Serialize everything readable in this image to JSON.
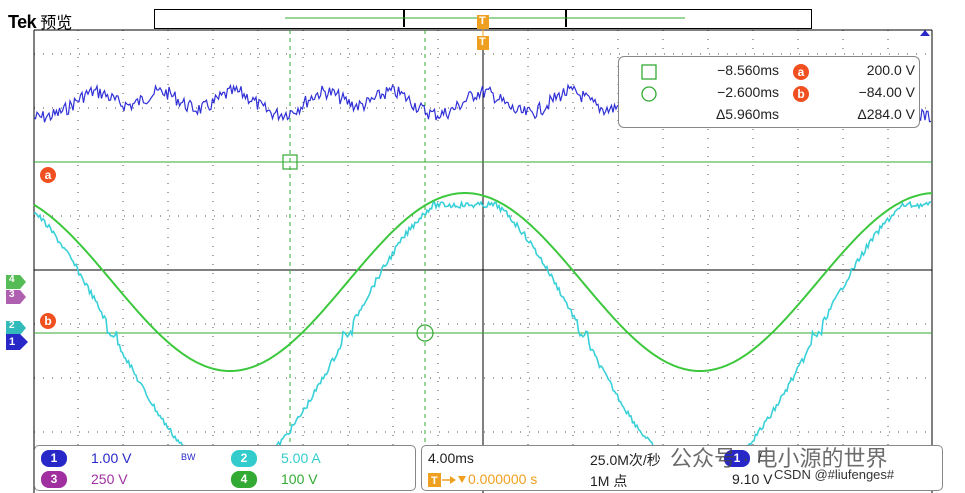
{
  "brand": {
    "logo": "Tek",
    "mode": "预览"
  },
  "cursor_readout": {
    "cursor1_time": "−8.560ms",
    "cursor2_time": "−2.600ms",
    "delta_time": "Δ5.960ms",
    "cursor_a_value": "200.0 V",
    "cursor_b_value": "−84.00 V",
    "delta_value": "Δ284.0 V",
    "cursor_a_label": "a",
    "cursor_b_label": "b"
  },
  "markers": {
    "trigger": "T",
    "ref_a": "a",
    "ref_b": "b",
    "ch4": "4",
    "ch3": "3",
    "ch2": "2",
    "ch1": "1"
  },
  "channels": [
    {
      "num": "1",
      "scale": "1.00 V",
      "color": "#2828c8"
    },
    {
      "num": "2",
      "scale": "5.00 A",
      "color": "#33cccc"
    },
    {
      "num": "3",
      "scale": "250 V",
      "color": "#a030a0"
    },
    {
      "num": "4",
      "scale": "100 V",
      "color": "#33aa33"
    }
  ],
  "bandwidth_icon_label": "BW",
  "timebase": {
    "scale": "4.00ms",
    "sample_rate": "25.0M次/秒",
    "trigger_position": "0.000000 s",
    "record_length": "1M 点",
    "trigger_channel": "1",
    "trigger_slope": "/",
    "trigger_level": "9.10 V"
  },
  "watermark": {
    "line1": "公众号 · 电小源的世界",
    "line2": "CSDN @#liufenges#"
  },
  "colors": {
    "grid": "#000000",
    "ch1_trace": "#1a1ad2",
    "ch2_trace": "#3ad0d8",
    "ch4_trace": "#3cc83c",
    "cursor": "#33aa33",
    "cursor_badge": "#f05020",
    "trigger_marker": "#f0a020"
  },
  "chart_data": {
    "type": "line",
    "series": [
      {
        "shape": "ripple",
        "peaks_ms": [
          -14.5,
          -7.2,
          -0.3,
          7.2,
          14.4
        ]
      },
      {
        "shape": "sine",
        "peak_ms": [
          0,
          18.8
        ],
        "trough_ms": [
          -9.3,
          9.3
        ]
      },
      {
        "shape": "clipped-sine",
        "flat_ms": [
          [
            -12.5,
            -10.2
          ],
          [
            -5.8,
            -3.5
          ],
          [
            5.2,
            7.4
          ],
          [
            11.6,
            13.8
          ]
        ]
      }
    ],
    "x_range_ms": [
      -20,
      20
    ],
    "grid": true
  }
}
